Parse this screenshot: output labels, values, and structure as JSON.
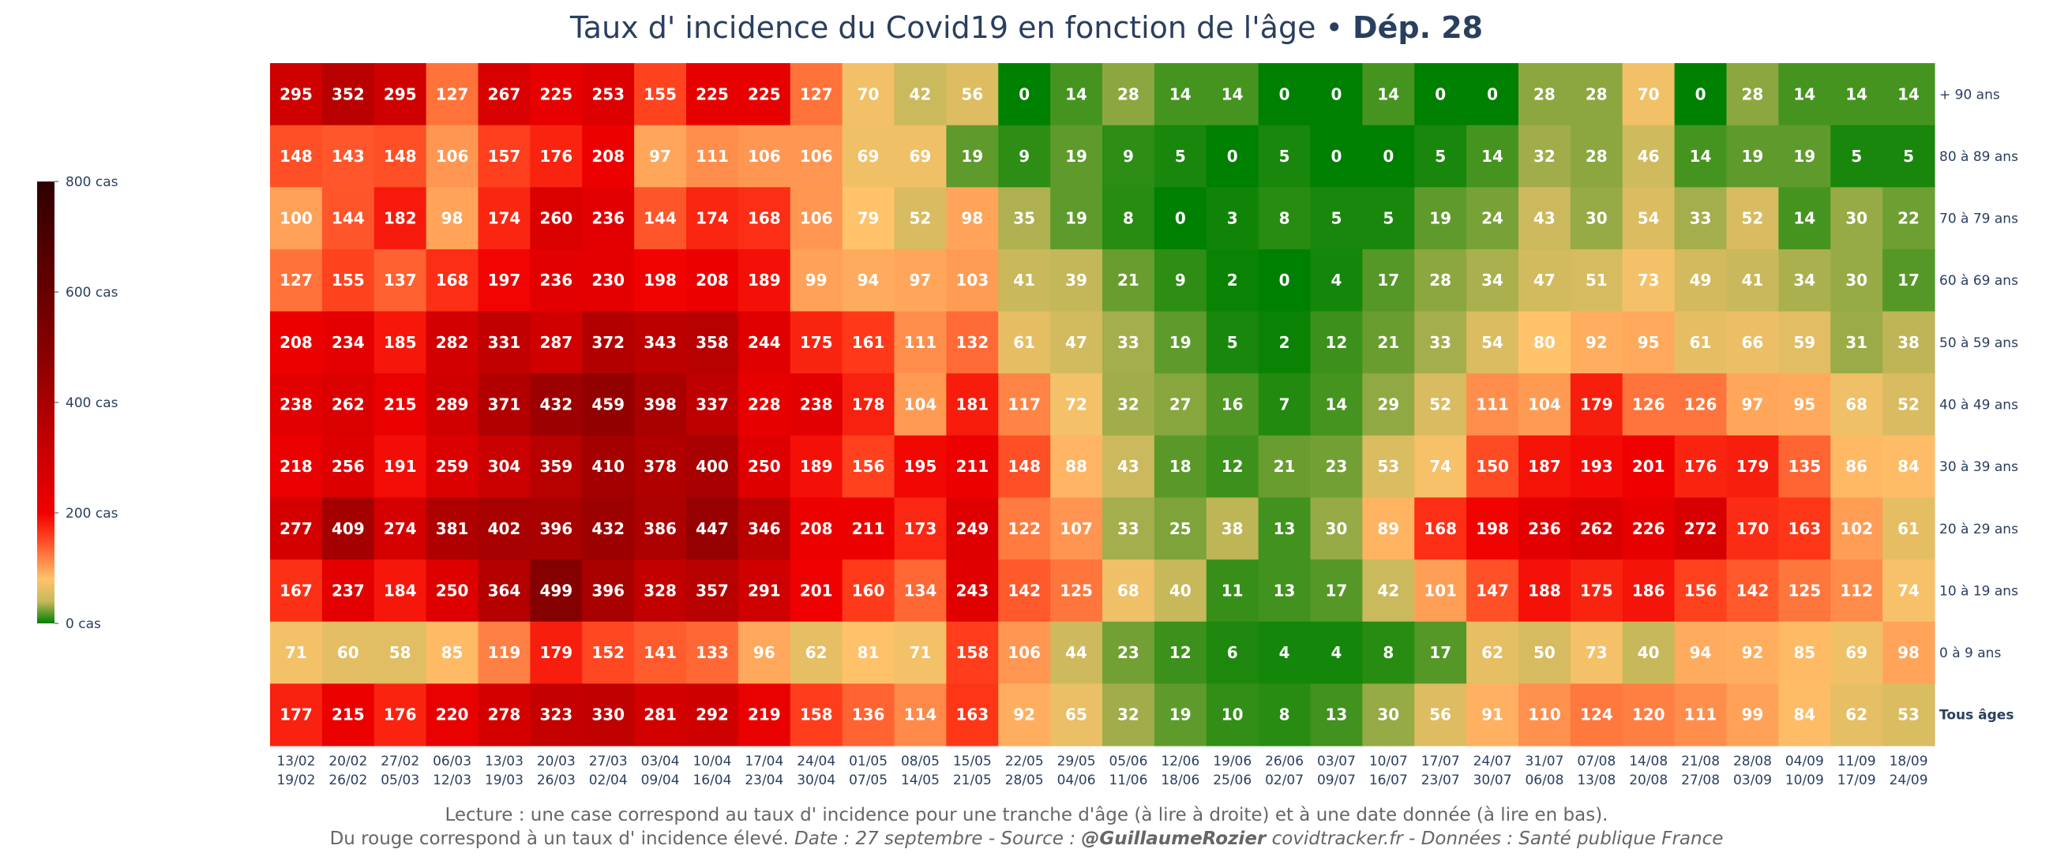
{
  "title": {
    "main": "Taux d' incidence du Covid19 en fonction de l'âge",
    "separator": " • ",
    "department": "Dép. 28"
  },
  "colors": {
    "title": "#2a3f5f",
    "text": "#2a3f5f",
    "footer": "#666666",
    "scale": [
      {
        "v": 0,
        "c": "#008000"
      },
      {
        "v": 40,
        "c": "#c8b85c"
      },
      {
        "v": 80,
        "c": "#ffc36b"
      },
      {
        "v": 160,
        "c": "#ff3a1a"
      },
      {
        "v": 200,
        "c": "#f00000"
      },
      {
        "v": 480,
        "c": "#8b0000"
      },
      {
        "v": 800,
        "c": "#2e0000"
      }
    ]
  },
  "colorbar": {
    "ticks": [
      {
        "value": 800,
        "label": "800 cas"
      },
      {
        "value": 600,
        "label": "600 cas"
      },
      {
        "value": 400,
        "label": "400 cas"
      },
      {
        "value": 200,
        "label": "200 cas"
      },
      {
        "value": 0,
        "label": "0 cas"
      }
    ]
  },
  "footer": {
    "line1": "Lecture : une case correspond au taux d' incidence pour une tranche d'âge (à lire à droite) et à une date donnée (à lire en bas).",
    "line2_prefix": "Du rouge correspond à un taux d' incidence élevé.  ",
    "line2_date": "Date : 27 septembre - Source : ",
    "line2_author": "@GuillaumeRozier",
    "line2_suffix": " covidtracker.fr - Données : Santé publique France"
  },
  "chart_data": {
    "type": "heatmap",
    "title": "Taux d' incidence du Covid19 en fonction de l'âge • Dép. 28",
    "zlim": [
      0,
      800
    ],
    "rows": [
      "+ 90 ans",
      "80 à 89 ans",
      "70 à 79 ans",
      "60 à 69 ans",
      "50 à 59 ans",
      "40 à 49 ans",
      "30 à 39 ans",
      "20 à 29 ans",
      "10 à 19 ans",
      "0 à 9 ans",
      "Tous âges"
    ],
    "columns": [
      [
        "13/02",
        "19/02"
      ],
      [
        "20/02",
        "26/02"
      ],
      [
        "27/02",
        "05/03"
      ],
      [
        "06/03",
        "12/03"
      ],
      [
        "13/03",
        "19/03"
      ],
      [
        "20/03",
        "26/03"
      ],
      [
        "27/03",
        "02/04"
      ],
      [
        "03/04",
        "09/04"
      ],
      [
        "10/04",
        "16/04"
      ],
      [
        "17/04",
        "23/04"
      ],
      [
        "24/04",
        "30/04"
      ],
      [
        "01/05",
        "07/05"
      ],
      [
        "08/05",
        "14/05"
      ],
      [
        "15/05",
        "21/05"
      ],
      [
        "22/05",
        "28/05"
      ],
      [
        "29/05",
        "04/06"
      ],
      [
        "05/06",
        "11/06"
      ],
      [
        "12/06",
        "18/06"
      ],
      [
        "19/06",
        "25/06"
      ],
      [
        "26/06",
        "02/07"
      ],
      [
        "03/07",
        "09/07"
      ],
      [
        "10/07",
        "16/07"
      ],
      [
        "17/07",
        "23/07"
      ],
      [
        "24/07",
        "30/07"
      ],
      [
        "31/07",
        "06/08"
      ],
      [
        "07/08",
        "13/08"
      ],
      [
        "14/08",
        "20/08"
      ],
      [
        "21/08",
        "27/08"
      ],
      [
        "28/08",
        "03/09"
      ],
      [
        "04/09",
        "10/09"
      ],
      [
        "11/09",
        "17/09"
      ],
      [
        "18/09",
        "24/09"
      ]
    ],
    "values": [
      [
        295,
        352,
        295,
        127,
        267,
        225,
        253,
        155,
        225,
        225,
        127,
        70,
        42,
        56,
        0,
        14,
        28,
        14,
        14,
        0,
        0,
        14,
        0,
        0,
        28,
        28,
        70,
        0,
        28,
        14,
        14,
        14
      ],
      [
        148,
        143,
        148,
        106,
        157,
        176,
        208,
        97,
        111,
        106,
        106,
        69,
        69,
        19,
        9,
        19,
        9,
        5,
        0,
        5,
        0,
        0,
        5,
        14,
        32,
        28,
        46,
        14,
        19,
        19,
        5,
        5
      ],
      [
        100,
        144,
        182,
        98,
        174,
        260,
        236,
        144,
        174,
        168,
        106,
        79,
        52,
        98,
        35,
        19,
        8,
        0,
        3,
        8,
        5,
        5,
        19,
        24,
        43,
        30,
        54,
        33,
        52,
        14,
        30,
        22
      ],
      [
        127,
        155,
        137,
        168,
        197,
        236,
        230,
        198,
        208,
        189,
        99,
        94,
        97,
        103,
        41,
        39,
        21,
        9,
        2,
        0,
        4,
        17,
        28,
        34,
        47,
        51,
        73,
        49,
        41,
        34,
        30,
        17
      ],
      [
        208,
        234,
        185,
        282,
        331,
        287,
        372,
        343,
        358,
        244,
        175,
        161,
        111,
        132,
        61,
        47,
        33,
        19,
        5,
        2,
        12,
        21,
        33,
        54,
        80,
        92,
        95,
        61,
        66,
        59,
        31,
        38
      ],
      [
        238,
        262,
        215,
        289,
        371,
        432,
        459,
        398,
        337,
        228,
        238,
        178,
        104,
        181,
        117,
        72,
        32,
        27,
        16,
        7,
        14,
        29,
        52,
        111,
        104,
        179,
        126,
        126,
        97,
        95,
        68,
        52
      ],
      [
        218,
        256,
        191,
        259,
        304,
        359,
        410,
        378,
        400,
        250,
        189,
        156,
        195,
        211,
        148,
        88,
        43,
        18,
        12,
        21,
        23,
        53,
        74,
        150,
        187,
        193,
        201,
        176,
        179,
        135,
        86,
        84
      ],
      [
        277,
        409,
        274,
        381,
        402,
        396,
        432,
        386,
        447,
        346,
        208,
        211,
        173,
        249,
        122,
        107,
        33,
        25,
        38,
        13,
        30,
        89,
        168,
        198,
        236,
        262,
        226,
        272,
        170,
        163,
        102,
        61
      ],
      [
        167,
        237,
        184,
        250,
        364,
        499,
        396,
        328,
        357,
        291,
        201,
        160,
        134,
        243,
        142,
        125,
        68,
        40,
        11,
        13,
        17,
        42,
        101,
        147,
        188,
        175,
        186,
        156,
        142,
        125,
        112,
        74
      ],
      [
        71,
        60,
        58,
        85,
        119,
        179,
        152,
        141,
        133,
        96,
        62,
        81,
        71,
        158,
        106,
        44,
        23,
        12,
        6,
        4,
        4,
        8,
        17,
        62,
        50,
        73,
        40,
        94,
        92,
        85,
        69,
        98
      ],
      [
        177,
        215,
        176,
        220,
        278,
        323,
        330,
        281,
        292,
        219,
        158,
        136,
        114,
        163,
        92,
        65,
        32,
        19,
        10,
        8,
        13,
        30,
        56,
        91,
        110,
        124,
        120,
        111,
        99,
        84,
        62,
        53
      ]
    ]
  }
}
